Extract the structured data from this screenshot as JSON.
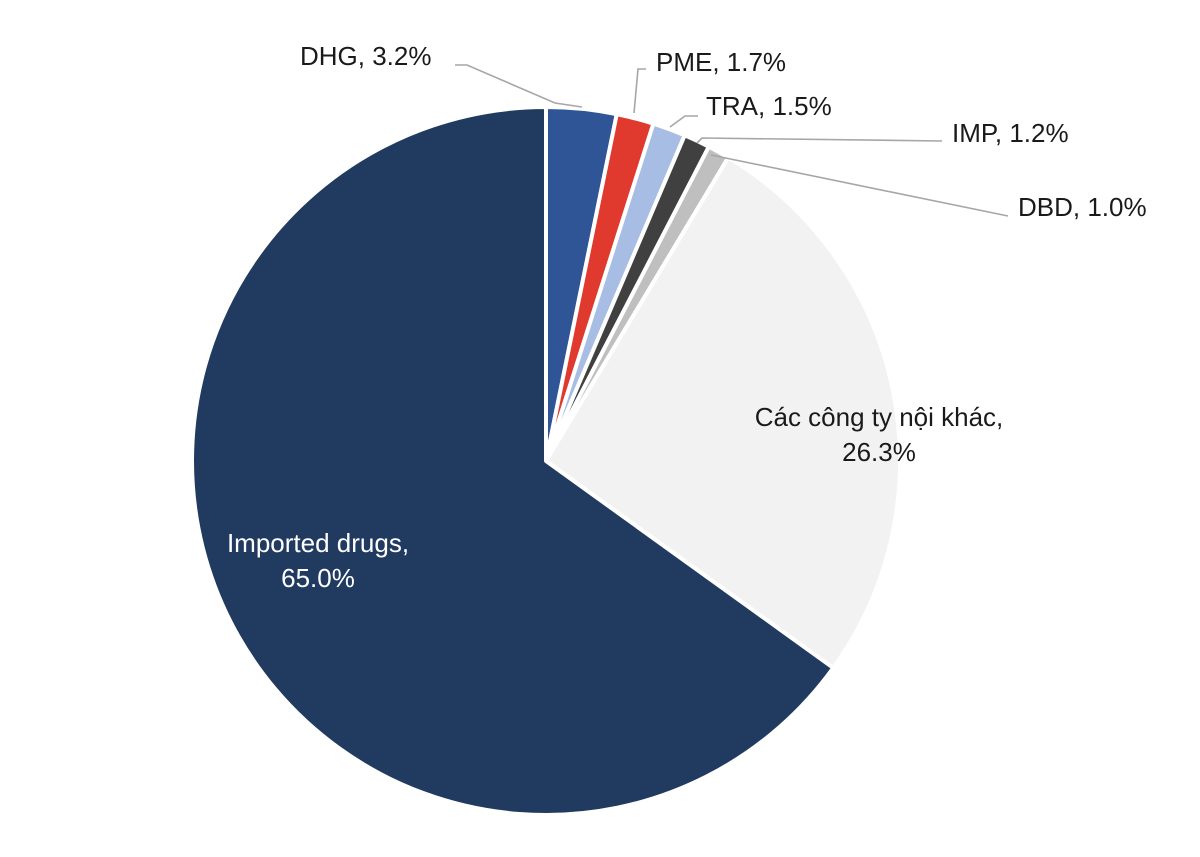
{
  "chart_data": {
    "type": "pie",
    "start_angle_deg": 0,
    "direction": "clockwise",
    "slices": [
      {
        "name": "DHG",
        "value": 3.2,
        "label": "DHG, 3.2%",
        "color": "#2f5597",
        "label_style": "outside"
      },
      {
        "name": "PME",
        "value": 1.7,
        "label": "PME, 1.7%",
        "color": "#e03a2f",
        "label_style": "outside"
      },
      {
        "name": "TRA",
        "value": 1.5,
        "label": "TRA, 1.5%",
        "color": "#a7bde3",
        "label_style": "outside"
      },
      {
        "name": "IMP",
        "value": 1.2,
        "label": "IMP, 1.2%",
        "color": "#404040",
        "label_style": "outside"
      },
      {
        "name": "DBD",
        "value": 1.0,
        "label": "DBD, 1.0%",
        "color": "#bfbfbf",
        "label_style": "outside"
      },
      {
        "name": "Các công ty nội khác",
        "value": 26.3,
        "label_lines": [
          "Các công ty nội khác,",
          "26.3%"
        ],
        "color": "#f2f2f2",
        "text_color": "#1a1a1a",
        "label_style": "inside"
      },
      {
        "name": "Imported drugs",
        "value": 65.0,
        "label_lines": [
          "Imported drugs,",
          "65.0%"
        ],
        "color": "#213a60",
        "text_color": "#ffffff",
        "label_style": "inside"
      }
    ],
    "leader_color": "#a6a6a6",
    "label_color": "#1a1a1a"
  }
}
